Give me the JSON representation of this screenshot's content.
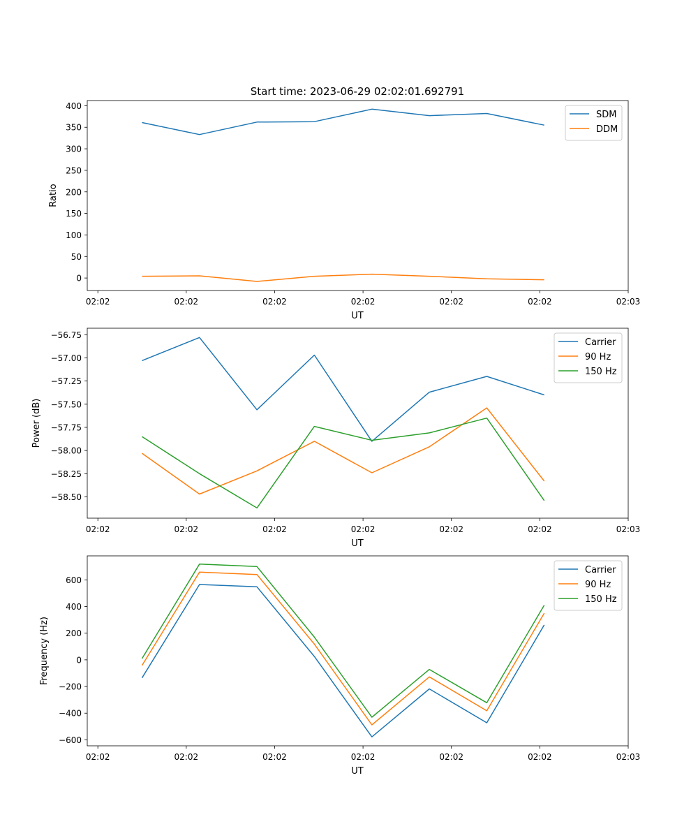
{
  "figure_title": "Start time: 2023-06-29 02:02:01.692791",
  "chart_data": [
    {
      "type": "line",
      "title": "Start time: 2023-06-29 02:02:01.692791",
      "xlabel": "UT",
      "ylabel": "Ratio",
      "x_ticks": [
        "02:02",
        "02:02",
        "02:02",
        "02:02",
        "02:02",
        "02:02",
        "02:03"
      ],
      "y_ticks": [
        "0",
        "50",
        "100",
        "150",
        "200",
        "250",
        "300",
        "350",
        "400"
      ],
      "y_tick_values": [
        0,
        50,
        100,
        150,
        200,
        250,
        300,
        350,
        400
      ],
      "ylim": [
        -29,
        412
      ],
      "x": [
        0.5,
        1.15,
        1.8,
        2.45,
        3.1,
        3.75,
        4.4,
        5.05
      ],
      "xlim": [
        -0.12,
        6.0
      ],
      "x_tick_positions": [
        0,
        1,
        2,
        3,
        4,
        5,
        6
      ],
      "legend": "top-right",
      "series": [
        {
          "name": "SDM",
          "color": "#1f77b4",
          "values": [
            361,
            333,
            362,
            363,
            392,
            377,
            382,
            355
          ]
        },
        {
          "name": "DDM",
          "color": "#ff7f0e",
          "values": [
            4,
            5,
            -8,
            4,
            9,
            4,
            -2,
            -4
          ]
        }
      ]
    },
    {
      "type": "line",
      "title": "",
      "xlabel": "UT",
      "ylabel": "Power (dB)",
      "x_ticks": [
        "02:02",
        "02:02",
        "02:02",
        "02:02",
        "02:02",
        "02:02",
        "02:03"
      ],
      "y_ticks": [
        "−58.50",
        "−58.25",
        "−58.00",
        "−57.75",
        "−57.50",
        "−57.25",
        "−57.00",
        "−56.75"
      ],
      "y_tick_values": [
        -58.5,
        -58.25,
        -58.0,
        -57.75,
        -57.5,
        -57.25,
        -57.0,
        -56.75
      ],
      "ylim": [
        -58.73,
        -56.68
      ],
      "x": [
        0.5,
        1.15,
        1.8,
        2.45,
        3.1,
        3.75,
        4.4,
        5.05
      ],
      "xlim": [
        -0.12,
        6.0
      ],
      "x_tick_positions": [
        0,
        1,
        2,
        3,
        4,
        5,
        6
      ],
      "legend": "top-right",
      "series": [
        {
          "name": "Carrier",
          "color": "#1f77b4",
          "values": [
            -57.03,
            -56.78,
            -57.56,
            -56.97,
            -57.9,
            -57.37,
            -57.2,
            -57.4
          ]
        },
        {
          "name": "90 Hz",
          "color": "#ff7f0e",
          "values": [
            -58.03,
            -58.47,
            -58.22,
            -57.9,
            -58.24,
            -57.96,
            -57.54,
            -58.33
          ]
        },
        {
          "name": "150 Hz",
          "color": "#2ca02c",
          "values": [
            -57.85,
            -58.25,
            -58.62,
            -57.74,
            -57.89,
            -57.81,
            -57.65,
            -58.54
          ]
        }
      ]
    },
    {
      "type": "line",
      "title": "",
      "xlabel": "UT",
      "ylabel": "Frequency (Hz)",
      "x_ticks": [
        "02:02",
        "02:02",
        "02:02",
        "02:02",
        "02:02",
        "02:02",
        "02:03"
      ],
      "y_ticks": [
        "−600",
        "−400",
        "−200",
        "0",
        "200",
        "400",
        "600"
      ],
      "y_tick_values": [
        -600,
        -400,
        -200,
        0,
        200,
        400,
        600
      ],
      "ylim": [
        -645,
        780
      ],
      "x": [
        0.5,
        1.15,
        1.8,
        2.45,
        3.1,
        3.75,
        4.4,
        5.05
      ],
      "xlim": [
        -0.12,
        6.0
      ],
      "x_tick_positions": [
        0,
        1,
        2,
        3,
        4,
        5,
        6
      ],
      "legend": "top-right",
      "series": [
        {
          "name": "Carrier",
          "color": "#1f77b4",
          "values": [
            -135,
            565,
            548,
            25,
            -578,
            -218,
            -472,
            262
          ]
        },
        {
          "name": "90 Hz",
          "color": "#ff7f0e",
          "values": [
            -42,
            658,
            640,
            118,
            -488,
            -128,
            -382,
            350
          ]
        },
        {
          "name": "150 Hz",
          "color": "#2ca02c",
          "values": [
            10,
            718,
            700,
            170,
            -430,
            -72,
            -322,
            410
          ]
        }
      ]
    }
  ]
}
